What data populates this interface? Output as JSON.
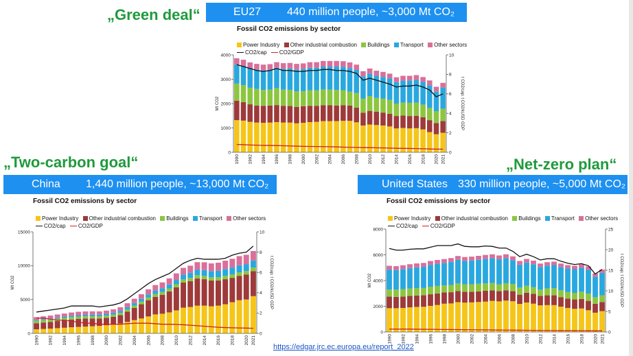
{
  "slogans": {
    "eu": "„Green deal“",
    "china": "„Two-carbon goal“",
    "us": "„Net-zero plan“"
  },
  "bands": {
    "eu": {
      "region": "EU27",
      "stats": "440 million people, ~3,000 Mt CO₂"
    },
    "china": {
      "region": "China",
      "stats": "1,440 million people, ~13,000 Mt CO₂"
    },
    "us": {
      "region": "United States",
      "stats": "330 million people, ~5,000 Mt CO₂"
    }
  },
  "legend": {
    "power": "Power Industry",
    "other_ind": "Other industrial combustion",
    "buildings": "Buildings",
    "transport": "Transport",
    "other_sec": "Other sectors",
    "cap": "CO2/cap",
    "gdp": "CO2/GDP"
  },
  "colors": {
    "power": "#f5c518",
    "other_ind": "#9e3a3a",
    "buildings": "#8cc63f",
    "transport": "#29a8e0",
    "other_sec": "#d9709a",
    "cap": "#111111",
    "gdp": "#cc2222",
    "band": "#1e90f0",
    "slogan": "#1f9a3b"
  },
  "source_link": "https://edgar.jrc.ec.europa.eu/report_2022",
  "chart_data": [
    {
      "id": "eu",
      "type": "bar",
      "stacked": true,
      "title": "Fossil CO2 emissions by sector",
      "ylabel": "Mt CO2",
      "y2label": "t CO2/cap; t CO2/kUSD GDP",
      "ylim": [
        0,
        4000
      ],
      "yticks": [
        0,
        1000,
        2000,
        3000,
        4000
      ],
      "y2lim": [
        0,
        10
      ],
      "y2ticks": [
        0,
        2,
        4,
        6,
        8,
        10
      ],
      "xtick_labels": [
        "1990",
        "1992",
        "1994",
        "1996",
        "1998",
        "2000",
        "2002",
        "2004",
        "2006",
        "2008",
        "2010",
        "2012",
        "2014",
        "2016",
        "2018",
        "2020",
        "2021"
      ],
      "categories": [
        1990,
        1991,
        1992,
        1993,
        1994,
        1995,
        1996,
        1997,
        1998,
        1999,
        2000,
        2001,
        2002,
        2003,
        2004,
        2005,
        2006,
        2007,
        2008,
        2009,
        2010,
        2011,
        2012,
        2013,
        2014,
        2015,
        2016,
        2017,
        2018,
        2019,
        2020,
        2021
      ],
      "series": [
        {
          "name": "Power Industry",
          "values": [
            1320,
            1300,
            1250,
            1220,
            1210,
            1220,
            1240,
            1220,
            1220,
            1190,
            1210,
            1240,
            1250,
            1280,
            1280,
            1280,
            1290,
            1290,
            1230,
            1100,
            1140,
            1120,
            1100,
            1060,
            980,
            1000,
            980,
            990,
            940,
            830,
            740,
            800
          ]
        },
        {
          "name": "Other industrial combustion",
          "values": [
            800,
            760,
            720,
            700,
            700,
            700,
            700,
            690,
            680,
            670,
            680,
            670,
            660,
            650,
            650,
            640,
            640,
            630,
            600,
            520,
            560,
            550,
            530,
            520,
            510,
            510,
            510,
            510,
            500,
            490,
            460,
            480
          ]
        },
        {
          "name": "Buildings",
          "values": [
            700,
            700,
            680,
            680,
            650,
            650,
            690,
            660,
            660,
            640,
            620,
            640,
            630,
            650,
            640,
            640,
            620,
            570,
            600,
            580,
            610,
            560,
            570,
            570,
            510,
            530,
            540,
            540,
            520,
            500,
            490,
            510
          ]
        },
        {
          "name": "Transport",
          "values": [
            780,
            790,
            800,
            800,
            810,
            820,
            840,
            860,
            880,
            900,
            910,
            920,
            930,
            940,
            950,
            960,
            960,
            970,
            950,
            920,
            920,
            910,
            890,
            880,
            880,
            900,
            910,
            930,
            930,
            930,
            810,
            860
          ]
        },
        {
          "name": "Other sectors",
          "values": [
            260,
            250,
            240,
            230,
            230,
            230,
            230,
            230,
            230,
            230,
            230,
            230,
            230,
            230,
            230,
            230,
            230,
            230,
            220,
            210,
            210,
            210,
            210,
            200,
            200,
            200,
            200,
            200,
            200,
            200,
            190,
            200
          ]
        }
      ],
      "lines": [
        {
          "name": "CO2/cap",
          "axis": "right",
          "values": [
            9.0,
            8.8,
            8.6,
            8.4,
            8.3,
            8.4,
            8.6,
            8.4,
            8.4,
            8.3,
            8.3,
            8.4,
            8.4,
            8.5,
            8.5,
            8.4,
            8.4,
            8.3,
            8.1,
            7.4,
            7.6,
            7.4,
            7.2,
            7.0,
            6.7,
            6.8,
            6.8,
            6.9,
            6.7,
            6.4,
            5.7,
            6.0
          ]
        },
        {
          "name": "CO2/GDP",
          "axis": "right",
          "values": [
            0.8,
            0.78,
            0.75,
            0.73,
            0.71,
            0.7,
            0.69,
            0.67,
            0.65,
            0.63,
            0.61,
            0.6,
            0.59,
            0.58,
            0.57,
            0.55,
            0.53,
            0.51,
            0.5,
            0.48,
            0.48,
            0.46,
            0.45,
            0.43,
            0.41,
            0.4,
            0.39,
            0.38,
            0.36,
            0.34,
            0.32,
            0.32
          ]
        }
      ]
    },
    {
      "id": "china",
      "type": "bar",
      "stacked": true,
      "title": "Fossil CO2 emissions by sector",
      "ylabel": "Mt CO2",
      "y2label": "t CO2/cap; t CO2/kUSD GDP",
      "ylim": [
        0,
        15000
      ],
      "yticks": [
        0,
        5000,
        10000,
        15000
      ],
      "y2lim": [
        0,
        10
      ],
      "y2ticks": [
        0,
        2,
        4,
        6,
        8,
        10
      ],
      "xtick_labels": [
        "1990",
        "1992",
        "1994",
        "1996",
        "1998",
        "2000",
        "2002",
        "2004",
        "2006",
        "2008",
        "2010",
        "2012",
        "2014",
        "2016",
        "2018",
        "2020",
        "2021"
      ],
      "categories": [
        1990,
        1991,
        1992,
        1993,
        1994,
        1995,
        1996,
        1997,
        1998,
        1999,
        2000,
        2001,
        2002,
        2003,
        2004,
        2005,
        2006,
        2007,
        2008,
        2009,
        2010,
        2011,
        2012,
        2013,
        2014,
        2015,
        2016,
        2017,
        2018,
        2019,
        2020,
        2021
      ],
      "series": [
        {
          "name": "Power Industry",
          "values": [
            600,
            650,
            700,
            770,
            830,
            900,
            950,
            1000,
            1050,
            1100,
            1200,
            1300,
            1450,
            1700,
            1950,
            2200,
            2500,
            2800,
            2900,
            3100,
            3400,
            3800,
            3900,
            4100,
            4100,
            4000,
            4100,
            4300,
            4600,
            4900,
            5000,
            5500
          ]
        },
        {
          "name": "Other industrial combustion",
          "values": [
            900,
            950,
            1000,
            1050,
            1100,
            1150,
            1180,
            1180,
            1150,
            1100,
            1100,
            1150,
            1250,
            1500,
            1800,
            2100,
            2400,
            2600,
            2800,
            3100,
            3400,
            3700,
            3800,
            4000,
            3900,
            3800,
            3700,
            3700,
            3600,
            3600,
            3700,
            3700
          ]
        },
        {
          "name": "Buildings",
          "values": [
            350,
            350,
            350,
            350,
            350,
            350,
            350,
            340,
            330,
            320,
            320,
            320,
            330,
            340,
            360,
            380,
            400,
            420,
            420,
            430,
            450,
            470,
            480,
            490,
            480,
            480,
            490,
            500,
            500,
            510,
            510,
            520
          ]
        },
        {
          "name": "Transport",
          "values": [
            150,
            160,
            170,
            180,
            190,
            200,
            210,
            220,
            230,
            240,
            260,
            280,
            300,
            330,
            370,
            410,
            450,
            500,
            550,
            590,
            650,
            710,
            770,
            830,
            870,
            910,
            950,
            990,
            1020,
            1050,
            1020,
            1050
          ]
        },
        {
          "name": "Other sectors",
          "values": [
            400,
            410,
            420,
            440,
            460,
            480,
            500,
            500,
            490,
            480,
            480,
            500,
            530,
            580,
            640,
            700,
            760,
            820,
            860,
            900,
            960,
            1000,
            1050,
            1100,
            1150,
            1150,
            1200,
            1250,
            1300,
            1350,
            1380,
            1400
          ]
        }
      ],
      "lines": [
        {
          "name": "CO2/cap",
          "axis": "right",
          "values": [
            2.1,
            2.2,
            2.3,
            2.4,
            2.5,
            2.7,
            2.7,
            2.7,
            2.7,
            2.6,
            2.7,
            2.8,
            3.0,
            3.4,
            3.9,
            4.4,
            4.9,
            5.3,
            5.6,
            5.9,
            6.4,
            6.9,
            7.2,
            7.4,
            7.3,
            7.3,
            7.3,
            7.4,
            7.7,
            7.9,
            8.0,
            8.6
          ]
        },
        {
          "name": "CO2/GDP",
          "axis": "right",
          "values": [
            1.5,
            1.5,
            1.4,
            1.3,
            1.3,
            1.2,
            1.1,
            1.0,
            1.0,
            0.9,
            0.9,
            0.9,
            0.9,
            0.95,
            1.0,
            1.0,
            1.0,
            0.95,
            0.9,
            0.9,
            0.88,
            0.85,
            0.8,
            0.75,
            0.7,
            0.65,
            0.6,
            0.57,
            0.55,
            0.53,
            0.52,
            0.5
          ]
        }
      ]
    },
    {
      "id": "us",
      "type": "bar",
      "stacked": true,
      "title": "Fossil CO2 emissions by sector",
      "ylabel": "Mt CO2",
      "y2label": "t CO2/cap; t CO2/kUSD GDP",
      "ylim": [
        0,
        8000
      ],
      "yticks": [
        0,
        2000,
        4000,
        6000,
        8000
      ],
      "y2lim": [
        0,
        25
      ],
      "y2ticks": [
        0,
        5,
        10,
        15,
        20,
        25
      ],
      "xtick_labels": [
        "1990",
        "1992",
        "1994",
        "1996",
        "1998",
        "2000",
        "2002",
        "2004",
        "2006",
        "2008",
        "2010",
        "2012",
        "2014",
        "2016",
        "2018",
        "2020",
        "2021"
      ],
      "categories": [
        1990,
        1991,
        1992,
        1993,
        1994,
        1995,
        1996,
        1997,
        1998,
        1999,
        2000,
        2001,
        2002,
        2003,
        2004,
        2005,
        2006,
        2007,
        2008,
        2009,
        2010,
        2011,
        2012,
        2013,
        2014,
        2015,
        2016,
        2017,
        2018,
        2019,
        2020,
        2021
      ],
      "series": [
        {
          "name": "Power Industry",
          "values": [
            1850,
            1850,
            1870,
            1920,
            1950,
            1960,
            2030,
            2100,
            2200,
            2220,
            2320,
            2280,
            2300,
            2330,
            2360,
            2420,
            2380,
            2440,
            2390,
            2180,
            2290,
            2200,
            2070,
            2090,
            2090,
            1970,
            1870,
            1800,
            1830,
            1690,
            1500,
            1620
          ]
        },
        {
          "name": "Other industrial combustion",
          "values": [
            900,
            880,
            880,
            880,
            890,
            900,
            900,
            900,
            880,
            870,
            870,
            850,
            830,
            830,
            840,
            820,
            800,
            800,
            780,
            720,
            760,
            760,
            740,
            760,
            760,
            740,
            730,
            730,
            740,
            730,
            690,
            710
          ]
        },
        {
          "name": "Buildings",
          "values": [
            550,
            560,
            580,
            580,
            570,
            560,
            590,
            580,
            540,
            560,
            580,
            570,
            570,
            590,
            570,
            560,
            520,
            550,
            560,
            550,
            540,
            520,
            480,
            540,
            560,
            530,
            500,
            510,
            560,
            560,
            510,
            520
          ]
        },
        {
          "name": "Transport",
          "values": [
            1550,
            1530,
            1560,
            1590,
            1620,
            1650,
            1700,
            1720,
            1750,
            1800,
            1840,
            1830,
            1860,
            1870,
            1920,
            1940,
            1950,
            1950,
            1860,
            1790,
            1810,
            1790,
            1760,
            1770,
            1790,
            1810,
            1830,
            1840,
            1860,
            1850,
            1600,
            1750
          ]
        },
        {
          "name": "Other sectors",
          "values": [
            300,
            300,
            300,
            300,
            300,
            300,
            300,
            300,
            300,
            300,
            300,
            300,
            300,
            300,
            300,
            300,
            300,
            300,
            290,
            280,
            280,
            280,
            270,
            270,
            270,
            270,
            270,
            270,
            270,
            270,
            250,
            260
          ]
        }
      ],
      "lines": [
        {
          "name": "CO2/cap",
          "axis": "right",
          "values": [
            20.3,
            19.9,
            19.9,
            20.1,
            20.2,
            20.2,
            20.6,
            21.0,
            21.0,
            21.0,
            21.4,
            20.8,
            20.7,
            20.7,
            20.9,
            20.8,
            20.4,
            20.4,
            19.6,
            18.3,
            18.9,
            18.3,
            17.5,
            17.8,
            17.8,
            17.2,
            16.7,
            16.4,
            16.6,
            16.1,
            14.1,
            15.2
          ]
        },
        {
          "name": "CO2/GDP",
          "axis": "right",
          "values": [
            0.7,
            0.7,
            0.7,
            0.7,
            0.68,
            0.66,
            0.65,
            0.63,
            0.61,
            0.59,
            0.57,
            0.55,
            0.54,
            0.52,
            0.51,
            0.49,
            0.47,
            0.46,
            0.45,
            0.43,
            0.42,
            0.4,
            0.38,
            0.37,
            0.36,
            0.34,
            0.33,
            0.32,
            0.31,
            0.3,
            0.28,
            0.28
          ]
        }
      ]
    }
  ]
}
